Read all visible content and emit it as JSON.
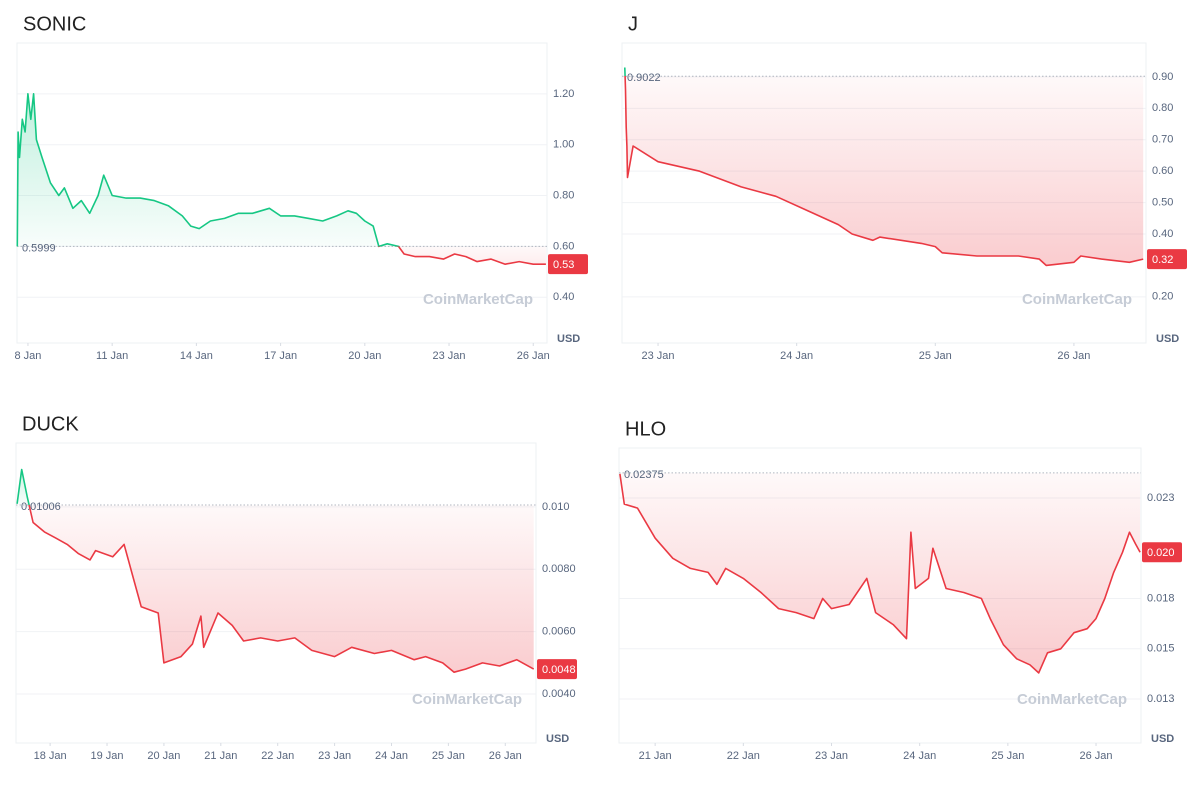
{
  "chart_data": [
    {
      "type": "line",
      "title": "SONIC",
      "y_unit": "USD",
      "watermark": "CoinMarketCap",
      "grid": true,
      "up_color": "#16c784",
      "down_color": "#ea3943",
      "baseline": 0.5999,
      "last_label": "0.53",
      "x": [
        7.62,
        7.65,
        7.7,
        7.8,
        7.9,
        8.0,
        8.1,
        8.2,
        8.3,
        8.5,
        8.8,
        9.1,
        9.3,
        9.6,
        9.9,
        10.2,
        10.5,
        10.7,
        11.0,
        11.5,
        12.0,
        12.5,
        13.0,
        13.5,
        13.8,
        14.1,
        14.5,
        15.0,
        15.5,
        16.0,
        16.6,
        17.0,
        17.5,
        18.0,
        18.5,
        19.0,
        19.4,
        19.7,
        20.0,
        20.3,
        20.5,
        20.8,
        21.2,
        21.4,
        21.8,
        22.3,
        22.8,
        23.2,
        23.6,
        24.0,
        24.5,
        25.0,
        25.5,
        26.0,
        26.45
      ],
      "values": [
        0.6,
        1.05,
        0.95,
        1.1,
        1.05,
        1.2,
        1.1,
        1.2,
        1.02,
        0.95,
        0.85,
        0.8,
        0.83,
        0.75,
        0.78,
        0.73,
        0.8,
        0.88,
        0.8,
        0.79,
        0.79,
        0.78,
        0.76,
        0.72,
        0.68,
        0.67,
        0.7,
        0.71,
        0.73,
        0.73,
        0.75,
        0.72,
        0.72,
        0.71,
        0.7,
        0.72,
        0.74,
        0.73,
        0.7,
        0.68,
        0.6,
        0.61,
        0.6,
        0.57,
        0.56,
        0.56,
        0.55,
        0.57,
        0.56,
        0.54,
        0.55,
        0.53,
        0.54,
        0.53,
        0.53
      ],
      "xlim": [
        7.61,
        26.49
      ],
      "ylim": [
        0.22,
        1.4
      ],
      "xticks": [
        {
          "value": 8,
          "label": "8 Jan"
        },
        {
          "value": 11,
          "label": "11 Jan"
        },
        {
          "value": 14,
          "label": "14 Jan"
        },
        {
          "value": 17,
          "label": "17 Jan"
        },
        {
          "value": 20,
          "label": "20 Jan"
        },
        {
          "value": 23,
          "label": "23 Jan"
        },
        {
          "value": 26,
          "label": "26 Jan"
        }
      ],
      "yticks": [
        {
          "value": 0.4,
          "label": "0.40"
        },
        {
          "value": 0.6,
          "label": "0.60"
        },
        {
          "value": 0.8,
          "label": "0.80"
        },
        {
          "value": 1.0,
          "label": "1.00"
        },
        {
          "value": 1.2,
          "label": "1.20"
        }
      ]
    },
    {
      "type": "line",
      "title": "J",
      "y_unit": "USD",
      "watermark": "CoinMarketCap",
      "grid": true,
      "up_color": "#16c784",
      "down_color": "#ea3943",
      "baseline": 0.9022,
      "last_label": "0.32",
      "x": [
        22.76,
        22.765,
        22.77,
        22.775,
        22.78,
        22.82,
        23.0,
        23.3,
        23.6,
        23.85,
        24.1,
        24.3,
        24.4,
        24.55,
        24.6,
        24.9,
        25.0,
        25.05,
        25.3,
        25.6,
        25.75,
        25.8,
        26.0,
        26.05,
        26.2,
        26.4,
        26.5
      ],
      "values": [
        0.93,
        0.86,
        0.74,
        0.68,
        0.58,
        0.68,
        0.63,
        0.6,
        0.55,
        0.52,
        0.47,
        0.43,
        0.4,
        0.38,
        0.39,
        0.37,
        0.36,
        0.34,
        0.33,
        0.33,
        0.32,
        0.3,
        0.31,
        0.33,
        0.32,
        0.31,
        0.32
      ],
      "xlim": [
        22.74,
        26.52
      ],
      "ylim": [
        0.053,
        1.008
      ],
      "xticks": [
        {
          "value": 23,
          "label": "23 Jan"
        },
        {
          "value": 24,
          "label": "24 Jan"
        },
        {
          "value": 25,
          "label": "25 Jan"
        },
        {
          "value": 26,
          "label": "26 Jan"
        }
      ],
      "yticks": [
        {
          "value": 0.2,
          "label": "0.20"
        },
        {
          "value": 0.4,
          "label": "0.40"
        },
        {
          "value": 0.5,
          "label": "0.50"
        },
        {
          "value": 0.6,
          "label": "0.60"
        },
        {
          "value": 0.7,
          "label": "0.70"
        },
        {
          "value": 0.8,
          "label": "0.80"
        },
        {
          "value": 0.9,
          "label": "0.90"
        }
      ]
    },
    {
      "type": "line",
      "title": "DUCK",
      "y_unit": "USD",
      "watermark": "CoinMarketCap",
      "grid": true,
      "up_color": "#16c784",
      "down_color": "#ea3943",
      "baseline": 0.01006,
      "last_label": "0.0048",
      "x": [
        17.42,
        17.5,
        17.6,
        17.7,
        17.9,
        18.1,
        18.3,
        18.5,
        18.7,
        18.8,
        19.1,
        19.3,
        19.45,
        19.6,
        19.9,
        20.0,
        20.3,
        20.5,
        20.65,
        20.7,
        20.95,
        21.2,
        21.4,
        21.7,
        22.0,
        22.3,
        22.6,
        23.0,
        23.3,
        23.7,
        24.0,
        24.4,
        24.6,
        24.9,
        25.1,
        25.3,
        25.6,
        25.9,
        26.2,
        26.5
      ],
      "values": [
        0.0101,
        0.0112,
        0.0103,
        0.0095,
        0.0092,
        0.009,
        0.0088,
        0.0085,
        0.0083,
        0.0086,
        0.0084,
        0.0088,
        0.0078,
        0.0068,
        0.0066,
        0.005,
        0.0052,
        0.0056,
        0.0065,
        0.0055,
        0.0066,
        0.0062,
        0.0057,
        0.0058,
        0.0057,
        0.0058,
        0.0054,
        0.0052,
        0.0055,
        0.0053,
        0.0054,
        0.0051,
        0.0052,
        0.005,
        0.0047,
        0.0048,
        0.005,
        0.0049,
        0.0051,
        0.0048
      ],
      "xlim": [
        17.4,
        26.54
      ],
      "ylim": [
        0.00243,
        0.01205
      ],
      "xticks": [
        {
          "value": 18,
          "label": "18 Jan"
        },
        {
          "value": 19,
          "label": "19 Jan"
        },
        {
          "value": 20,
          "label": "20 Jan"
        },
        {
          "value": 21,
          "label": "21 Jan"
        },
        {
          "value": 22,
          "label": "22 Jan"
        },
        {
          "value": 23,
          "label": "23 Jan"
        },
        {
          "value": 24,
          "label": "24 Jan"
        },
        {
          "value": 25,
          "label": "25 Jan"
        },
        {
          "value": 26,
          "label": "26 Jan"
        }
      ],
      "yticks": [
        {
          "value": 0.004,
          "label": "0.0040"
        },
        {
          "value": 0.006,
          "label": "0.0060"
        },
        {
          "value": 0.008,
          "label": "0.0080"
        },
        {
          "value": 0.01,
          "label": "0.010"
        }
      ]
    },
    {
      "type": "line",
      "title": "HLO",
      "y_unit": "USD",
      "watermark": "CoinMarketCap",
      "grid": true,
      "up_color": "#16c784",
      "down_color": "#ea3943",
      "baseline": 0.02375,
      "last_label": "0.020",
      "x": [
        20.6,
        20.65,
        20.8,
        21.0,
        21.2,
        21.4,
        21.6,
        21.7,
        21.8,
        22.0,
        22.2,
        22.4,
        22.6,
        22.8,
        22.9,
        23.0,
        23.2,
        23.4,
        23.5,
        23.7,
        23.85,
        23.9,
        23.95,
        24.1,
        24.15,
        24.3,
        24.5,
        24.7,
        24.8,
        24.95,
        25.1,
        25.25,
        25.35,
        25.45,
        25.6,
        25.75,
        25.9,
        26.0,
        26.1,
        26.2,
        26.3,
        26.38,
        26.45,
        26.5
      ],
      "values": [
        0.0237,
        0.0222,
        0.022,
        0.0205,
        0.0195,
        0.019,
        0.0188,
        0.0182,
        0.019,
        0.0185,
        0.0178,
        0.017,
        0.0168,
        0.0165,
        0.0175,
        0.017,
        0.0172,
        0.0185,
        0.0168,
        0.0162,
        0.0155,
        0.0208,
        0.018,
        0.0185,
        0.02,
        0.018,
        0.0178,
        0.0175,
        0.0165,
        0.0152,
        0.0145,
        0.0142,
        0.0138,
        0.0148,
        0.015,
        0.0158,
        0.016,
        0.0165,
        0.0175,
        0.0188,
        0.0198,
        0.0208,
        0.0202,
        0.0198
      ],
      "xlim": [
        20.59,
        26.51
      ],
      "ylim": [
        0.01031,
        0.02499
      ],
      "xticks": [
        {
          "value": 21,
          "label": "21 Jan"
        },
        {
          "value": 22,
          "label": "22 Jan"
        },
        {
          "value": 23,
          "label": "23 Jan"
        },
        {
          "value": 24,
          "label": "24 Jan"
        },
        {
          "value": 25,
          "label": "25 Jan"
        },
        {
          "value": 26,
          "label": "26 Jan"
        }
      ],
      "yticks": [
        {
          "value": 0.0125,
          "label": "0.013"
        },
        {
          "value": 0.015,
          "label": "0.015"
        },
        {
          "value": 0.0175,
          "label": "0.018"
        },
        {
          "value": 0.0225,
          "label": "0.023"
        }
      ]
    }
  ]
}
